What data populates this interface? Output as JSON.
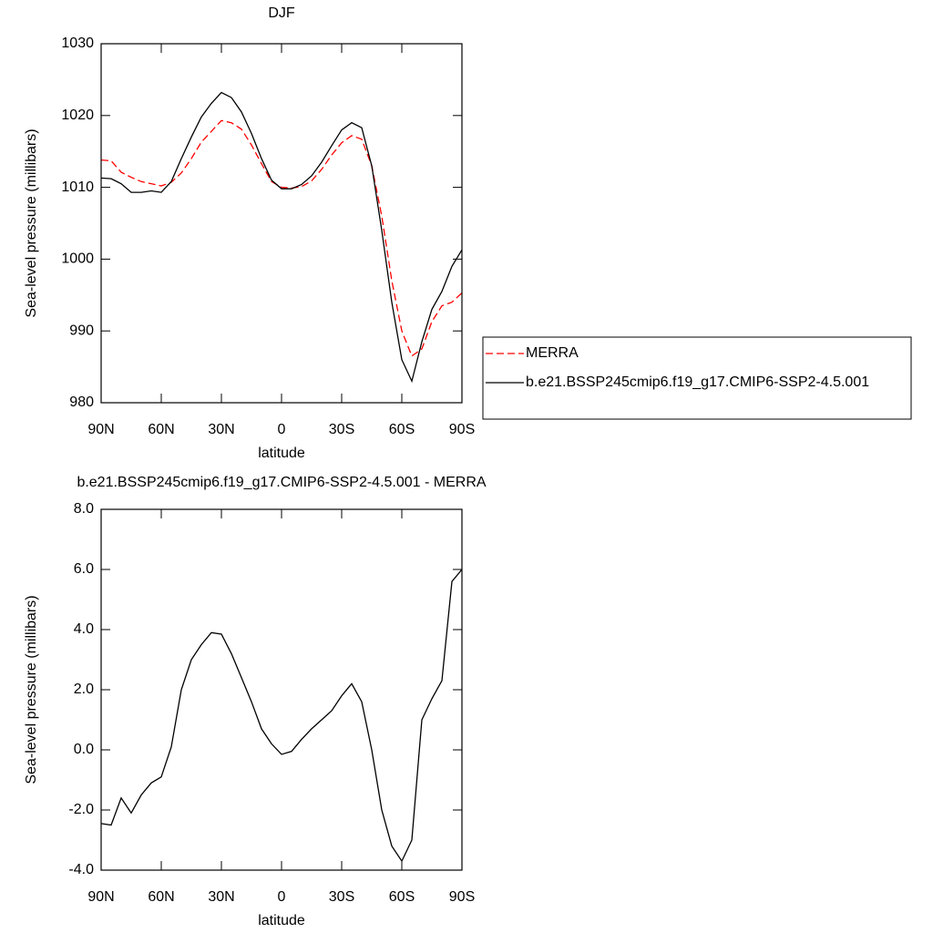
{
  "chart_data": [
    {
      "type": "line",
      "title": "DJF",
      "ylabel": "Sea-level pressure (millibars)",
      "xlabel": "latitude",
      "x": [
        90,
        85,
        80,
        75,
        70,
        65,
        60,
        55,
        50,
        45,
        40,
        35,
        30,
        25,
        20,
        15,
        10,
        5,
        0,
        -5,
        -10,
        -15,
        -20,
        -25,
        -30,
        -35,
        -40,
        -45,
        -50,
        -55,
        -60,
        -65,
        -70,
        -75,
        -80,
        -85,
        -90
      ],
      "series": [
        {
          "name": "MERRA",
          "color": "#ff0000",
          "style": "dashed",
          "values": [
            1013.8,
            1013.7,
            1012.1,
            1011.4,
            1010.8,
            1010.5,
            1010.2,
            1010.7,
            1012,
            1014,
            1016.3,
            1017.8,
            1019.3,
            1019,
            1018.1,
            1015.9,
            1013.3,
            1010.8,
            1010,
            1009.9,
            1010.1,
            1010.9,
            1012.5,
            1014.5,
            1016.2,
            1017.2,
            1016.7,
            1013,
            1006,
            997,
            990,
            986.5,
            987.5,
            991.3,
            993.5,
            994,
            995.3
          ]
        },
        {
          "name": "b.e21.BSSP245cmip6.f19_g17.CMIP6-SSP2-4.5.001",
          "color": "#000000",
          "style": "solid",
          "values": [
            1011.3,
            1011.2,
            1010.5,
            1009.3,
            1009.3,
            1009.5,
            1009.3,
            1010.8,
            1014,
            1017,
            1019.8,
            1021.7,
            1023.2,
            1022.5,
            1020.5,
            1017.5,
            1014,
            1011,
            1009.8,
            1009.8,
            1010.4,
            1011.6,
            1013.5,
            1015.8,
            1018,
            1019,
            1018.3,
            1013,
            1004,
            994,
            986,
            983,
            988.5,
            993,
            995.5,
            999,
            1001.3
          ]
        }
      ],
      "xlim": [
        90,
        -90
      ],
      "xticks": [
        {
          "value": 90,
          "label": "90N"
        },
        {
          "value": 60,
          "label": "60N"
        },
        {
          "value": 30,
          "label": "30N"
        },
        0,
        {
          "value": -30,
          "label": "30S"
        },
        {
          "value": -60,
          "label": "60S"
        },
        {
          "value": -90,
          "label": "90S"
        }
      ],
      "ylim": [
        980,
        1030
      ],
      "yticks": [
        980,
        990,
        1000,
        1010,
        1020,
        1030
      ],
      "legend": "right"
    },
    {
      "type": "line",
      "title": "b.e21.BSSP245cmip6.f19_g17.CMIP6-SSP2-4.5.001 - MERRA",
      "ylabel": "Sea-level pressure (millibars)",
      "xlabel": "latitude",
      "x": [
        90,
        85,
        80,
        75,
        70,
        65,
        60,
        55,
        50,
        45,
        40,
        35,
        30,
        25,
        20,
        15,
        10,
        5,
        0,
        -5,
        -10,
        -15,
        -20,
        -25,
        -30,
        -35,
        -40,
        -45,
        -50,
        -55,
        -60,
        -65,
        -70,
        -75,
        -80,
        -85,
        -90
      ],
      "values": [
        -2.45,
        -2.5,
        -1.6,
        -2.1,
        -1.5,
        -1.1,
        -0.9,
        0.1,
        2.0,
        3.0,
        3.5,
        3.9,
        3.85,
        3.2,
        2.4,
        1.6,
        0.7,
        0.2,
        -0.15,
        -0.05,
        0.35,
        0.7,
        1.0,
        1.3,
        1.8,
        2.2,
        1.6,
        0,
        -2,
        -3.2,
        -3.7,
        -3.0,
        1.0,
        1.7,
        2.3,
        5.6,
        6.0
      ],
      "color": "#000000",
      "xlim": [
        90,
        -90
      ],
      "xticks": [
        {
          "value": 90,
          "label": "90N"
        },
        {
          "value": 60,
          "label": "60N"
        },
        {
          "value": 30,
          "label": "30N"
        },
        0,
        {
          "value": -30,
          "label": "30S"
        },
        {
          "value": -60,
          "label": "60S"
        },
        {
          "value": -90,
          "label": "90S"
        }
      ],
      "ylim": [
        -4,
        8
      ],
      "yticks": [
        {
          "value": -4,
          "label": "-4.0"
        },
        {
          "value": -2,
          "label": "-2.0"
        },
        {
          "value": 0,
          "label": "0.0"
        },
        {
          "value": 2,
          "label": "2.0"
        },
        {
          "value": 4,
          "label": "4.0"
        },
        {
          "value": 6,
          "label": "6.0"
        },
        {
          "value": 8,
          "label": "8.0"
        }
      ]
    }
  ]
}
